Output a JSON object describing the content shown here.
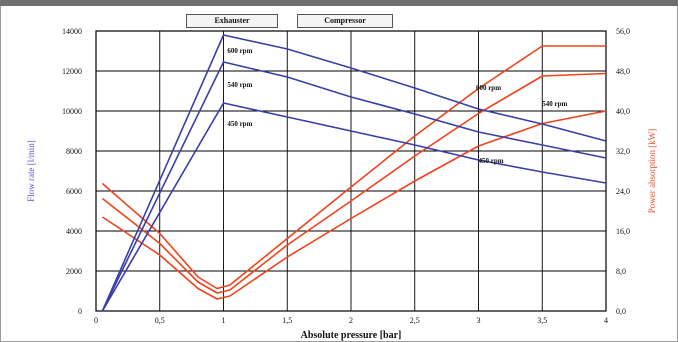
{
  "modes": {
    "exhauster_label": "Exhauster",
    "compressor_label": "Compressor"
  },
  "chart_data": {
    "type": "line",
    "title": "",
    "xlabel": "Absolute pressure [bar]",
    "ylabel_left": "Flow rate [l/min]",
    "ylabel_right": "Power absorption [kW]",
    "xlim": [
      0,
      4
    ],
    "ylim_left": [
      0,
      14000
    ],
    "ylim_right": [
      0,
      56
    ],
    "x_ticks": [
      {
        "value": 0,
        "label": "0"
      },
      {
        "value": 0.5,
        "label": "0,5"
      },
      {
        "value": 1,
        "label": "1"
      },
      {
        "value": 1.5,
        "label": "1,5"
      },
      {
        "value": 2,
        "label": "2"
      },
      {
        "value": 2.5,
        "label": "2,5"
      },
      {
        "value": 3,
        "label": "3"
      },
      {
        "value": 3.5,
        "label": "3,5"
      },
      {
        "value": 4,
        "label": "4"
      }
    ],
    "y_left_ticks": [
      {
        "value": 0,
        "label": "0"
      },
      {
        "value": 2000,
        "label": "2000"
      },
      {
        "value": 4000,
        "label": "4000"
      },
      {
        "value": 6000,
        "label": "6000"
      },
      {
        "value": 8000,
        "label": "8000"
      },
      {
        "value": 10000,
        "label": "10000"
      },
      {
        "value": 12000,
        "label": "12000"
      },
      {
        "value": 14000,
        "label": "14000"
      }
    ],
    "y_right_ticks": [
      {
        "value": 0,
        "label": "0,0"
      },
      {
        "value": 8,
        "label": "8,0"
      },
      {
        "value": 16,
        "label": "16,0"
      },
      {
        "value": 24,
        "label": "24,0"
      },
      {
        "value": 32,
        "label": "32,0"
      },
      {
        "value": 40,
        "label": "40,0"
      },
      {
        "value": 48,
        "label": "48,0"
      },
      {
        "value": 56,
        "label": "56,0"
      }
    ],
    "grid": true,
    "colors": {
      "flow": "#3a3fa8",
      "power": "#f0421c",
      "left_axis_label": "#5a5ad0",
      "right_axis_label": "#e8502a",
      "grid": "#000000",
      "plot_background": "#ffffff"
    },
    "flow_series": [
      {
        "name": "600 rpm",
        "axis": "left",
        "points": [
          [
            0.05,
            0
          ],
          [
            1.0,
            13800
          ],
          [
            1.5,
            13100
          ],
          [
            2,
            12150
          ],
          [
            2.5,
            11150
          ],
          [
            3,
            10100
          ],
          [
            3.5,
            9350
          ],
          [
            4,
            8500
          ]
        ]
      },
      {
        "name": "540 rpm",
        "axis": "left",
        "points": [
          [
            0.05,
            0
          ],
          [
            1.0,
            12450
          ],
          [
            1.5,
            11700
          ],
          [
            2,
            10700
          ],
          [
            2.5,
            9850
          ],
          [
            3,
            8950
          ],
          [
            3.5,
            8300
          ],
          [
            4,
            7650
          ]
        ]
      },
      {
        "name": "450 rpm",
        "axis": "left",
        "points": [
          [
            0.05,
            0
          ],
          [
            1.0,
            10400
          ],
          [
            1.5,
            9700
          ],
          [
            2,
            9000
          ],
          [
            2.5,
            8300
          ],
          [
            3,
            7550
          ],
          [
            3.5,
            6950
          ],
          [
            4,
            6400
          ]
        ]
      }
    ],
    "power_series": [
      {
        "name": "600 rpm",
        "axis": "right",
        "points": [
          [
            0.05,
            25.5
          ],
          [
            0.5,
            15.5
          ],
          [
            0.8,
            6.8
          ],
          [
            0.95,
            4.5
          ],
          [
            1.05,
            5.2
          ],
          [
            1.5,
            14.5
          ],
          [
            2,
            24.8
          ],
          [
            2.5,
            35
          ],
          [
            3,
            44.5
          ],
          [
            3.5,
            53
          ],
          [
            4,
            53
          ]
        ]
      },
      {
        "name": "540 rpm",
        "axis": "right",
        "points": [
          [
            0.05,
            22.5
          ],
          [
            0.5,
            13.5
          ],
          [
            0.8,
            5.8
          ],
          [
            0.95,
            3.6
          ],
          [
            1.05,
            4.2
          ],
          [
            1.5,
            13.2
          ],
          [
            2,
            22
          ],
          [
            2.5,
            31
          ],
          [
            3,
            39.5
          ],
          [
            3.5,
            47
          ],
          [
            4,
            47.5
          ]
        ]
      },
      {
        "name": "450 rpm",
        "axis": "right",
        "points": [
          [
            0.05,
            18.8
          ],
          [
            0.5,
            11.2
          ],
          [
            0.8,
            4.5
          ],
          [
            0.95,
            2.4
          ],
          [
            1.05,
            3.0
          ],
          [
            1.5,
            10.8
          ],
          [
            2,
            18.5
          ],
          [
            2.5,
            26
          ],
          [
            3,
            33
          ],
          [
            3.5,
            37.5
          ],
          [
            4,
            40
          ]
        ]
      }
    ],
    "annotations": [
      {
        "text": "600 rpm",
        "x": 1.03,
        "y_left": 12900
      },
      {
        "text": "540 rpm",
        "x": 1.03,
        "y_left": 11200
      },
      {
        "text": "450 rpm",
        "x": 1.03,
        "y_left": 9250
      },
      {
        "text": "600 rpm",
        "x": 2.98,
        "y_left": 11050
      },
      {
        "text": "540 rpm",
        "x": 3.5,
        "y_left": 10250
      },
      {
        "text": "450 rpm",
        "x": 3.0,
        "y_left": 7400
      }
    ]
  }
}
